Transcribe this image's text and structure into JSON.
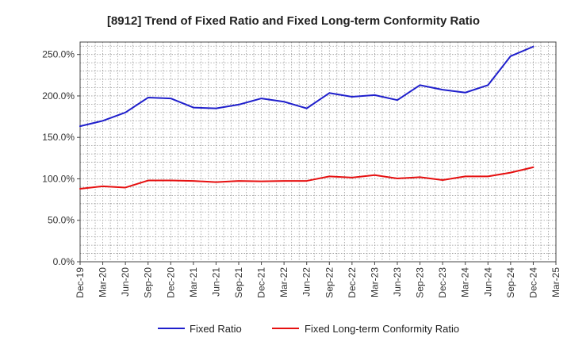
{
  "chart_data": {
    "type": "line",
    "title": "[8912]  Trend of Fixed Ratio and Fixed Long-term Conformity Ratio",
    "xlabel": "",
    "ylabel": "",
    "x_ticks": [
      "Dec-19",
      "Mar-20",
      "Jun-20",
      "Sep-20",
      "Dec-20",
      "Mar-21",
      "Jun-21",
      "Sep-21",
      "Dec-21",
      "Mar-22",
      "Jun-22",
      "Sep-22",
      "Dec-22",
      "Mar-23",
      "Jun-23",
      "Sep-23",
      "Dec-23",
      "Mar-24",
      "Jun-24",
      "Sep-24",
      "Dec-24",
      "Mar-25"
    ],
    "y_ticks": [
      "0.0%",
      "50.0%",
      "100.0%",
      "150.0%",
      "200.0%",
      "250.0%"
    ],
    "ylim": [
      0,
      265
    ],
    "grid": true,
    "legend_position": "bottom",
    "series": [
      {
        "name": "Fixed Ratio",
        "color": "#1f1fcc",
        "x": [
          "Dec-19",
          "Mar-20",
          "Jun-20",
          "Sep-20",
          "Dec-20",
          "Mar-21",
          "Jun-21",
          "Sep-21",
          "Dec-21",
          "Mar-22",
          "Jun-22",
          "Sep-22",
          "Dec-22",
          "Mar-23",
          "Jun-23",
          "Sep-23",
          "Dec-23",
          "Mar-24",
          "Jun-24",
          "Sep-24",
          "Dec-24"
        ],
        "values": [
          163.5,
          170.0,
          180.0,
          198.0,
          197.0,
          186.0,
          185.0,
          189.5,
          197.0,
          193.0,
          185.0,
          203.5,
          199.0,
          201.0,
          195.0,
          213.0,
          207.5,
          204.0,
          213.0,
          248.0,
          259.5
        ]
      },
      {
        "name": "Fixed Long-term Conformity Ratio",
        "color": "#e61010",
        "x": [
          "Dec-19",
          "Mar-20",
          "Jun-20",
          "Sep-20",
          "Dec-20",
          "Mar-21",
          "Jun-21",
          "Sep-21",
          "Dec-21",
          "Mar-22",
          "Jun-22",
          "Sep-22",
          "Dec-22",
          "Mar-23",
          "Jun-23",
          "Sep-23",
          "Dec-23",
          "Mar-24",
          "Jun-24",
          "Sep-24",
          "Dec-24"
        ],
        "values": [
          88.0,
          91.0,
          89.5,
          98.0,
          98.0,
          97.5,
          96.0,
          97.5,
          97.0,
          97.5,
          97.5,
          103.0,
          101.5,
          104.5,
          100.5,
          102.0,
          98.5,
          103.0,
          103.0,
          107.5,
          114.0
        ]
      }
    ]
  }
}
